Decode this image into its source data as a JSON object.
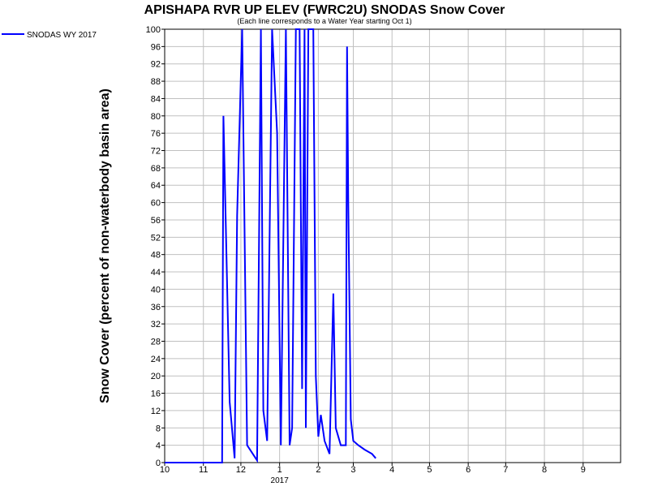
{
  "chart_data": {
    "type": "line",
    "title": "APISHAPA RVR UP ELEV (FWRC2U) SNODAS Snow Cover",
    "subtitle": "(Each line corresponds to a Water Year starting Oct 1)",
    "y_label": "Snow Cover (percent of non-waterbody basin area)",
    "x_sublabel": "2017",
    "x": [
      0,
      46,
      47,
      52,
      56,
      58,
      62,
      66,
      74,
      77,
      79,
      82,
      86,
      90,
      93,
      97,
      100,
      102,
      105,
      108,
      110,
      112,
      113,
      115,
      119,
      121,
      123,
      125,
      128,
      132,
      135,
      137,
      141,
      145,
      146,
      147,
      149,
      151,
      155,
      160,
      166,
      169
    ],
    "series": [
      {
        "name": "SNODAS WY 2017",
        "color": "#0000ff",
        "values": [
          0,
          0,
          80,
          14,
          1,
          57,
          100,
          4,
          0.5,
          100,
          12,
          5,
          100,
          76,
          4,
          100,
          4,
          8,
          100,
          100,
          17,
          100,
          8,
          100,
          100,
          20,
          6,
          11,
          5,
          2,
          39,
          8,
          4,
          4,
          96,
          60,
          10,
          5,
          4,
          3,
          2,
          1
        ]
      }
    ],
    "xlim": [
      0,
      365
    ],
    "xticks": [
      {
        "value": 0,
        "label": "10"
      },
      {
        "value": 31,
        "label": "11"
      },
      {
        "value": 61,
        "label": "12"
      },
      {
        "value": 92,
        "label": "1"
      },
      {
        "value": 123,
        "label": "2"
      },
      {
        "value": 151,
        "label": "3"
      },
      {
        "value": 182,
        "label": "4"
      },
      {
        "value": 212,
        "label": "5"
      },
      {
        "value": 243,
        "label": "6"
      },
      {
        "value": 273,
        "label": "7"
      },
      {
        "value": 304,
        "label": "8"
      },
      {
        "value": 335,
        "label": "9"
      }
    ],
    "ylim": [
      0,
      100
    ],
    "yticks": [
      0,
      4,
      8,
      12,
      16,
      20,
      24,
      28,
      32,
      36,
      40,
      44,
      48,
      52,
      56,
      60,
      64,
      68,
      72,
      76,
      80,
      84,
      88,
      92,
      96,
      100
    ],
    "grid": true
  }
}
